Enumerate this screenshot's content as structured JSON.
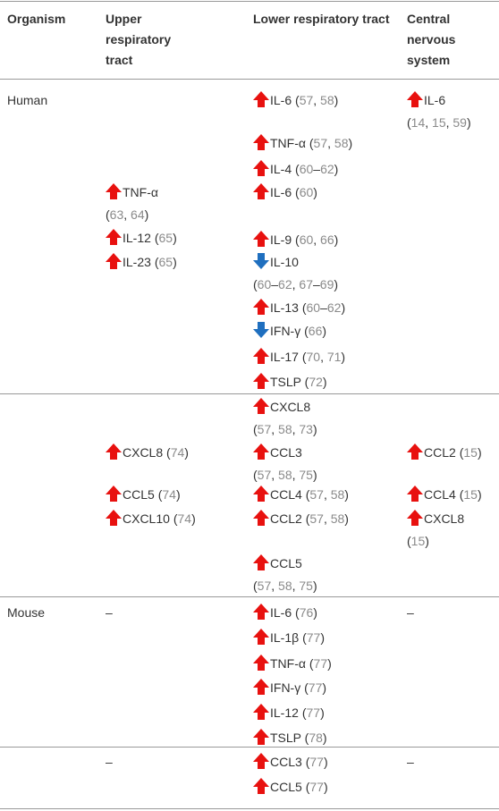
{
  "table": {
    "header": [
      "Organism",
      "Upper respiratory tract",
      "Lower respiratory tract",
      "Central nervous system"
    ],
    "groups": [
      {
        "organism": "Human",
        "upper": [
          {
            "name": "TNF-α",
            "refs": "(63, 64)",
            "arrow": "up"
          },
          {
            "name": "IL-12",
            "refs": "(65)",
            "arrow": "up"
          },
          {
            "name": "IL-23",
            "refs": "(65)",
            "arrow": "up"
          }
        ],
        "lower": [
          {
            "name": "IL-6",
            "refs": "(57, 58)",
            "arrow": "up"
          },
          {
            "name": "TNF-α",
            "refs": "(57, 58)",
            "arrow": "up"
          },
          {
            "name": "IL-4",
            "refs": "(60–62)",
            "arrow": "up"
          },
          {
            "name": "IL-6",
            "refs": "(60)",
            "arrow": "up"
          },
          {
            "name": "IL-9",
            "refs": "(60, 66)",
            "arrow": "up"
          },
          {
            "name": "IL-10",
            "refs": "(60–62, 67–69)",
            "arrow": "down"
          },
          {
            "name": "IL-13",
            "refs": "(60–62)",
            "arrow": "up"
          },
          {
            "name": "IFN-γ",
            "refs": "(66)",
            "arrow": "down"
          },
          {
            "name": "IL-17",
            "refs": "(70, 71)",
            "arrow": "up"
          },
          {
            "name": "TSLP",
            "refs": "(72)",
            "arrow": "up"
          }
        ],
        "cns": [
          {
            "name": "IL-6",
            "refs": "(14, 15, 59)",
            "arrow": "up"
          }
        ]
      },
      {
        "upper": [
          {
            "name": "CXCL8",
            "refs": "(74)",
            "arrow": "up"
          },
          {
            "name": "CCL5",
            "refs": "(74)",
            "arrow": "up"
          },
          {
            "name": "CXCL10",
            "refs": "(74)",
            "arrow": "up"
          }
        ],
        "lower": [
          {
            "name": "CXCL8",
            "refs": "(57, 58, 73)",
            "arrow": "up"
          },
          {
            "name": "CCL3",
            "refs": "(57, 58, 75)",
            "arrow": "up"
          },
          {
            "name": "CCL4",
            "refs": "(57, 58)",
            "arrow": "up"
          },
          {
            "name": "CCL2",
            "refs": "(57, 58)",
            "arrow": "up"
          },
          {
            "name": "CCL5",
            "refs": "(57, 58, 75)",
            "arrow": "up"
          }
        ],
        "cns": [
          {
            "name": "CCL2",
            "refs": "(15)",
            "arrow": "up"
          },
          {
            "name": "CCL4",
            "refs": "(15)",
            "arrow": "up"
          },
          {
            "name": "CXCL8",
            "refs": "(15)",
            "arrow": "up"
          }
        ]
      },
      {
        "organism": "Mouse",
        "upper": [
          {
            "name": "–"
          }
        ],
        "lower": [
          {
            "name": "IL-6",
            "refs": "(76)",
            "arrow": "up"
          },
          {
            "name": "IL-1β",
            "refs": "(77)",
            "arrow": "up"
          },
          {
            "name": "TNF-α",
            "refs": "(77)",
            "arrow": "up"
          },
          {
            "name": "IFN-γ",
            "refs": "(77)",
            "arrow": "up"
          },
          {
            "name": "IL-12",
            "refs": "(77)",
            "arrow": "up"
          },
          {
            "name": "TSLP",
            "refs": "(78)",
            "arrow": "up"
          }
        ],
        "cns": [
          {
            "name": "–"
          }
        ]
      },
      {
        "upper": [
          {
            "name": "–"
          }
        ],
        "lower": [
          {
            "name": "CCL3",
            "refs": "(77)",
            "arrow": "up"
          },
          {
            "name": "CCL5",
            "refs": "(77)",
            "arrow": "up"
          }
        ],
        "cns": [
          {
            "name": "–"
          }
        ]
      }
    ]
  }
}
